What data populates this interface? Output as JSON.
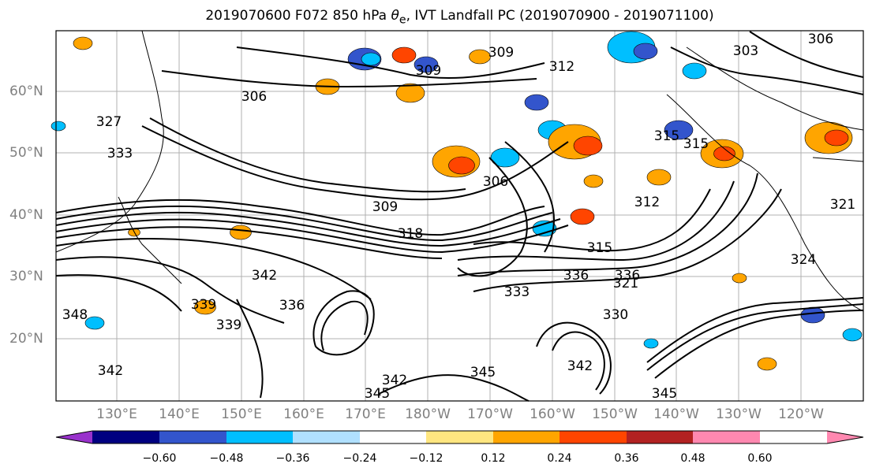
{
  "title": {
    "prefix": "2019070600 F072 850 hPa ",
    "theta": "θ",
    "sub": "e",
    "suffix": ", IVT Landfall PC (2019070900 - 2019071100)"
  },
  "axes": {
    "lat_labels": [
      "60°N",
      "50°N",
      "40°N",
      "30°N",
      "20°N"
    ],
    "lon_labels": [
      "130°E",
      "140°E",
      "150°E",
      "160°E",
      "170°E",
      "180°W",
      "170°W",
      "160°W",
      "150°W",
      "140°W",
      "130°W",
      "120°W"
    ]
  },
  "contour_labels": [
    "306",
    "309",
    "309",
    "306",
    "312",
    "315",
    "315",
    "312",
    "315",
    "318",
    "321",
    "321",
    "324",
    "327",
    "333",
    "336",
    "339",
    "342",
    "342",
    "345",
    "345",
    "348",
    "336",
    "342",
    "339",
    "345",
    "342",
    "330",
    "333",
    "336",
    "303",
    "309",
    "306"
  ],
  "colorbar": {
    "colors": [
      "#9932cc",
      "#000080",
      "#3355cc",
      "#00bfff",
      "#b0e0ff",
      "#ffffff",
      "#ffe680",
      "#ffa500",
      "#ff4500",
      "#b22222",
      "#ff88b0"
    ],
    "tick_labels": [
      "−0.60",
      "−0.48",
      "−0.36",
      "−0.24",
      "−0.12",
      "0.12",
      "0.24",
      "0.36",
      "0.48",
      "0.60"
    ]
  }
}
